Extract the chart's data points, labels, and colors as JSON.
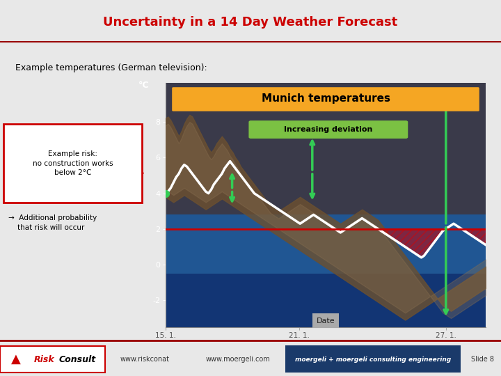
{
  "title": "Uncertainty in a 14 Day Weather Forecast",
  "title_color": "#cc0000",
  "subtitle": "Example temperatures (German television):",
  "bg_color": "#e8e8e8",
  "chart_title": "Munich temperatures",
  "chart_subtitle": "Increasing deviation",
  "x_label": "Date",
  "x_ticks": [
    "15. 1.",
    "21. 1.",
    "27. 1."
  ],
  "y_ticks": [
    -2,
    0,
    2,
    4,
    6,
    8
  ],
  "risk_label": "Example risk:\nno construction works\nbelow 2°C",
  "additional_label": "→  Additional probability\n    that risk will occur",
  "footer_left": "www.riskconat",
  "footer_center": "www.moergeli.com",
  "footer_right": "moergeli + moergeli consulting engineering",
  "footer_slide": "Slide 8",
  "orange_header_color": "#f5a623",
  "green_label_color": "#7bc143",
  "risk_line_color": "#cc0000",
  "chart_bg_dark": "#3a3a4a",
  "footer_bar_color": "#1a3a6a"
}
